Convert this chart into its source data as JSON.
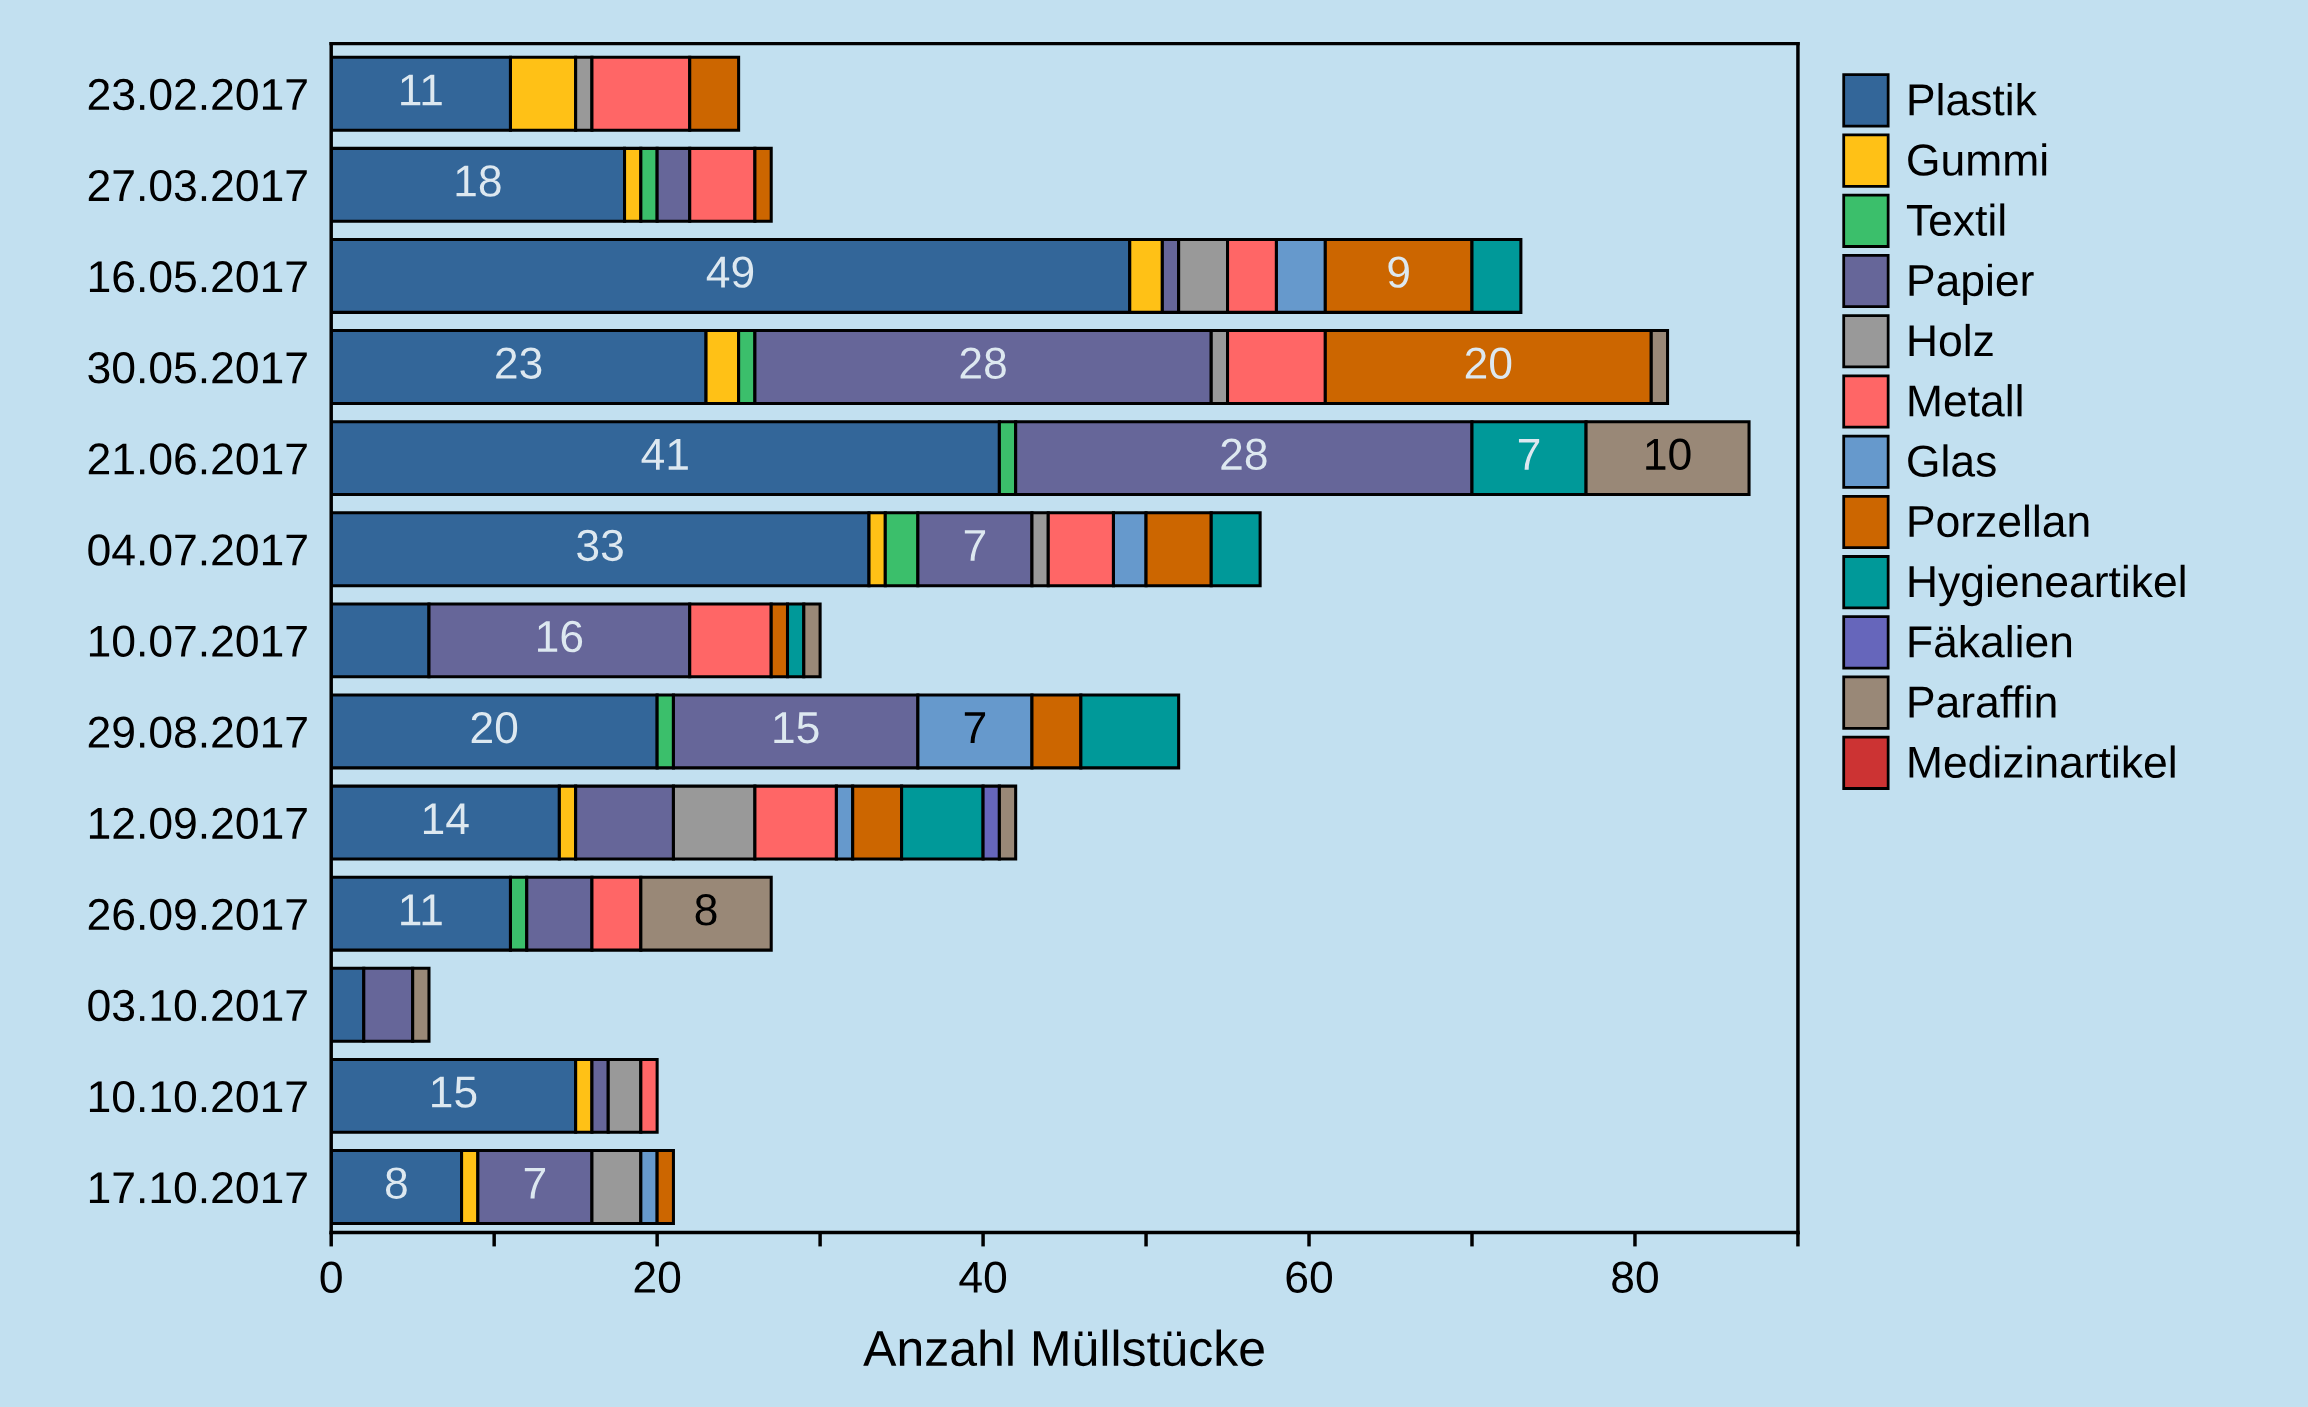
{
  "chart_data": {
    "type": "bar",
    "orientation": "horizontal",
    "stacked": true,
    "xlabel": "Anzahl Müllstücke",
    "categories": [
      "23.02.2017",
      "27.03.2017",
      "16.05.2017",
      "30.05.2017",
      "21.06.2017",
      "04.07.2017",
      "10.07.2017",
      "29.08.2017",
      "12.09.2017",
      "26.09.2017",
      "03.10.2017",
      "10.10.2017",
      "17.10.2017"
    ],
    "xlim": [
      0,
      90
    ],
    "xticks": [
      0,
      {
        "value": 10,
        "label": null
      },
      20,
      {
        "value": 30,
        "label": null
      },
      40,
      {
        "value": 50,
        "label": null
      },
      60,
      {
        "value": 70,
        "label": null
      },
      80,
      {
        "value": 90,
        "label": null
      }
    ],
    "grid": false,
    "legend": "right",
    "series": [
      {
        "name": "Plastik",
        "color": "#336699",
        "values": [
          11,
          18,
          49,
          23,
          41,
          33,
          6,
          20,
          14,
          11,
          2,
          15,
          8
        ],
        "value_labels": [
          "11",
          "18",
          "49",
          "23",
          "41",
          "33",
          null,
          "20",
          "14",
          "11",
          null,
          "15",
          "8"
        ]
      },
      {
        "name": "Gummi",
        "color": "#ffc116",
        "values": [
          4,
          1,
          2,
          2,
          null,
          1,
          null,
          null,
          1,
          null,
          null,
          1,
          1
        ]
      },
      {
        "name": "Textil",
        "color": "#3bbf6b",
        "values": [
          null,
          1,
          null,
          1,
          1,
          2,
          null,
          1,
          null,
          1,
          null,
          null,
          null
        ]
      },
      {
        "name": "Papier",
        "color": "#666699",
        "values": [
          null,
          2,
          1,
          28,
          28,
          7,
          16,
          15,
          6,
          4,
          3,
          1,
          7
        ],
        "value_labels": [
          null,
          null,
          null,
          "28",
          "28",
          "7",
          "16",
          "15",
          null,
          null,
          null,
          null,
          "7"
        ]
      },
      {
        "name": "Holz",
        "color": "#999999",
        "values": [
          1,
          null,
          3,
          1,
          null,
          1,
          null,
          null,
          5,
          null,
          null,
          2,
          3
        ]
      },
      {
        "name": "Metall",
        "color": "#ff6666",
        "values": [
          6,
          4,
          3,
          6,
          null,
          4,
          5,
          null,
          5,
          3,
          null,
          1,
          null
        ]
      },
      {
        "name": "Glas",
        "color": "#6699cc",
        "values": [
          null,
          null,
          3,
          null,
          null,
          2,
          null,
          7,
          1,
          null,
          null,
          null,
          1
        ],
        "value_labels": [
          null,
          null,
          null,
          null,
          null,
          null,
          null,
          "7",
          null,
          null,
          null,
          null,
          null
        ]
      },
      {
        "name": "Porzellan",
        "color": "#cc6600",
        "values": [
          3,
          1,
          9,
          20,
          null,
          4,
          1,
          3,
          3,
          null,
          null,
          null,
          1
        ],
        "value_labels": [
          null,
          null,
          "9",
          "20",
          null,
          null,
          null,
          null,
          null,
          null,
          null,
          null,
          null
        ]
      },
      {
        "name": "Hygieneartikel",
        "color": "#009999",
        "values": [
          null,
          null,
          3,
          null,
          7,
          3,
          1,
          6,
          5,
          null,
          null,
          null,
          null
        ],
        "value_labels": [
          null,
          null,
          null,
          null,
          "7",
          null,
          null,
          null,
          null,
          null,
          null,
          null,
          null
        ]
      },
      {
        "name": "Fäkalien",
        "color": "#6666bb",
        "values": [
          null,
          null,
          null,
          null,
          null,
          null,
          null,
          null,
          1,
          null,
          null,
          null,
          null
        ]
      },
      {
        "name": "Paraffin",
        "color": "#998877",
        "values": [
          null,
          null,
          null,
          1,
          10,
          null,
          1,
          null,
          1,
          8,
          1,
          null,
          null
        ],
        "value_labels": [
          null,
          null,
          null,
          null,
          "10",
          null,
          null,
          null,
          null,
          "8",
          null,
          null,
          null
        ]
      },
      {
        "name": "Medizinartikel",
        "color": "#cc3333",
        "values": [
          null,
          null,
          null,
          null,
          null,
          null,
          null,
          null,
          null,
          null,
          null,
          null,
          null
        ]
      }
    ]
  }
}
